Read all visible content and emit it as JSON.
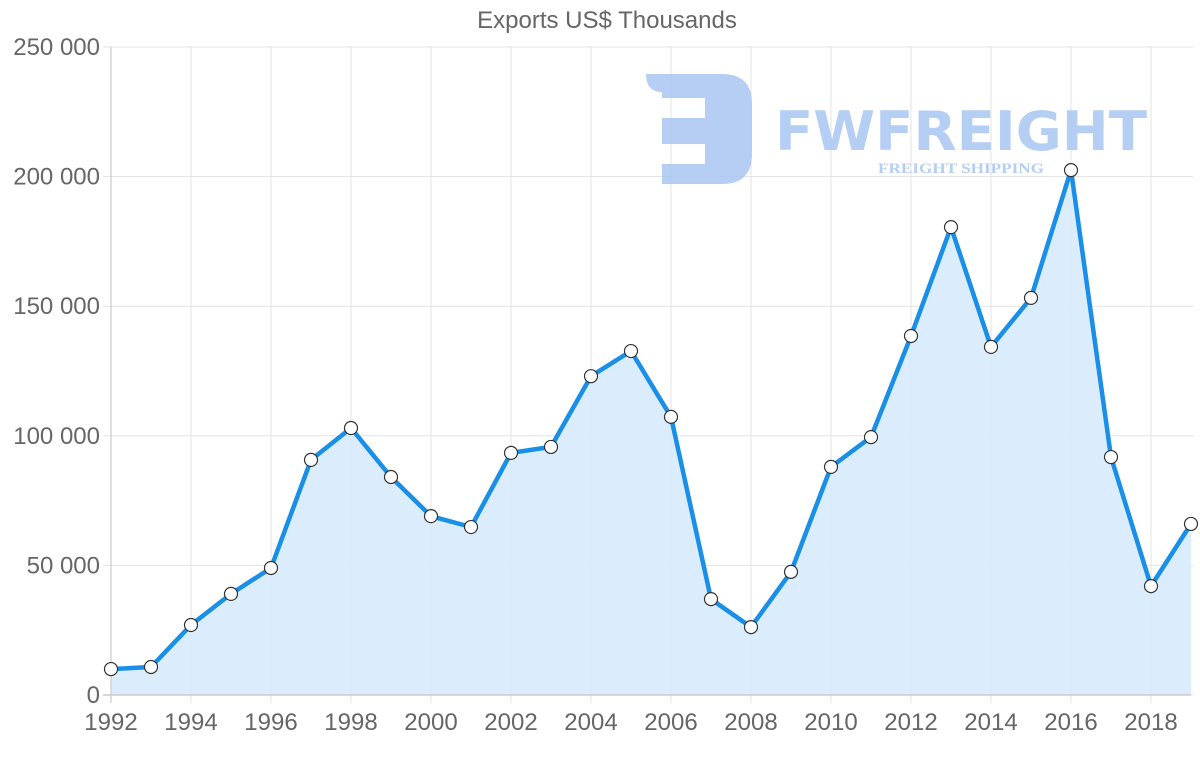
{
  "chart_data": {
    "type": "line",
    "title": "Exports US$ Thousands",
    "xlabel": "",
    "ylabel": "",
    "x": [
      1992,
      1993,
      1994,
      1995,
      1996,
      1997,
      1998,
      1999,
      2000,
      2001,
      2002,
      2003,
      2004,
      2005,
      2006,
      2007,
      2008,
      2009,
      2010,
      2011,
      2012,
      2013,
      2014,
      2015,
      2016,
      2017,
      2018,
      2019
    ],
    "series": [
      {
        "name": "Exports US$ Thousands",
        "values": [
          10000,
          10800,
          27000,
          39000,
          49000,
          90700,
          103000,
          84100,
          69000,
          64800,
          93400,
          95700,
          123000,
          132700,
          107300,
          37000,
          26200,
          47500,
          88000,
          99500,
          138500,
          180500,
          134300,
          153200,
          202500,
          91800,
          42000,
          66000
        ],
        "color": "#1a8fe8",
        "fill": "#d9ecfc"
      }
    ],
    "ylim": [
      0,
      250000
    ],
    "y_ticks": [
      "0",
      "50 000",
      "100 000",
      "150 000",
      "200 000",
      "250 000"
    ],
    "x_ticks": [
      "1992",
      "1994",
      "1996",
      "1998",
      "2000",
      "2002",
      "2004",
      "2006",
      "2008",
      "2010",
      "2012",
      "2014",
      "2016",
      "2018"
    ],
    "grid": true,
    "legend": "none"
  },
  "watermark": {
    "brand": "FWFREIGHT",
    "tagline": "FREIGHT SHIPPING",
    "color": "#a9c6f2"
  }
}
